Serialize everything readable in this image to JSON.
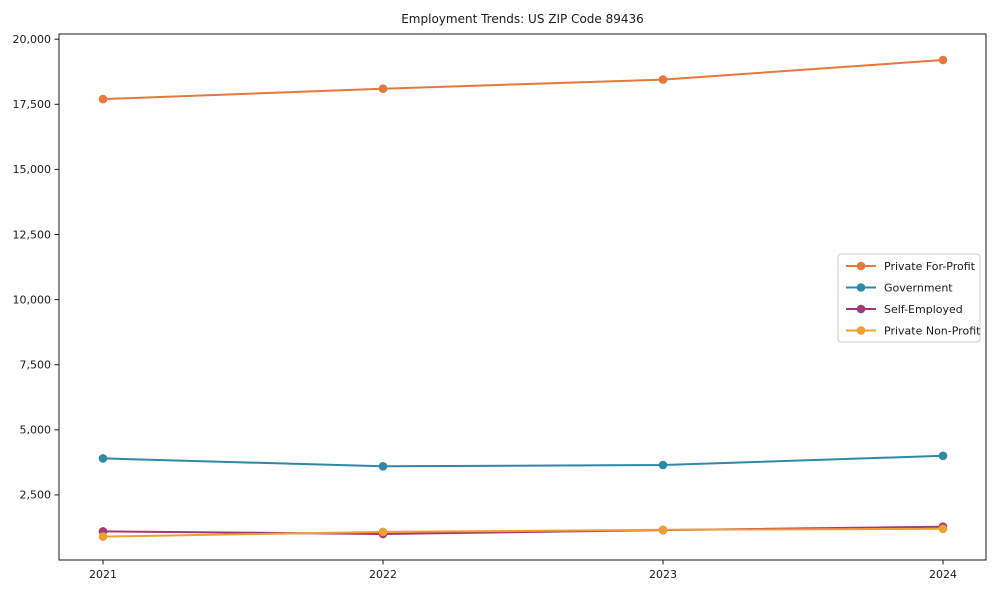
{
  "title": "Employment Trends: US ZIP Code 89436",
  "chart_data": {
    "type": "line",
    "title": "Employment Trends: US ZIP Code 89436",
    "x": [
      2021,
      2022,
      2023,
      2024
    ],
    "xtick_labels": [
      "2021",
      "2022",
      "2023",
      "2024"
    ],
    "yticks": [
      2500,
      5000,
      7500,
      10000,
      12500,
      15000,
      17500,
      20000
    ],
    "ytick_labels": [
      "2,500",
      "5,000",
      "7,500",
      "10,000",
      "12,500",
      "15,000",
      "17,500",
      "20,000"
    ],
    "ylim": [
      0,
      20200
    ],
    "xlabel": "",
    "ylabel": "",
    "grid": false,
    "marker": "circle",
    "legend_position": "center-right",
    "series": [
      {
        "name": "Private For-Profit",
        "color": "#e5783c",
        "values": [
          17700,
          18100,
          18450,
          19200
        ]
      },
      {
        "name": "Government",
        "color": "#2f89a6",
        "values": [
          3900,
          3600,
          3650,
          4000
        ]
      },
      {
        "name": "Self-Employed",
        "color": "#a23779",
        "values": [
          1100,
          1000,
          1150,
          1280
        ]
      },
      {
        "name": "Private Non-Profit",
        "color": "#efa02e",
        "values": [
          900,
          1080,
          1160,
          1200
        ]
      }
    ],
    "axis_color": "#1a1a1a",
    "legend_border_color": "#cccccc",
    "legend_background": "#ffffff"
  }
}
